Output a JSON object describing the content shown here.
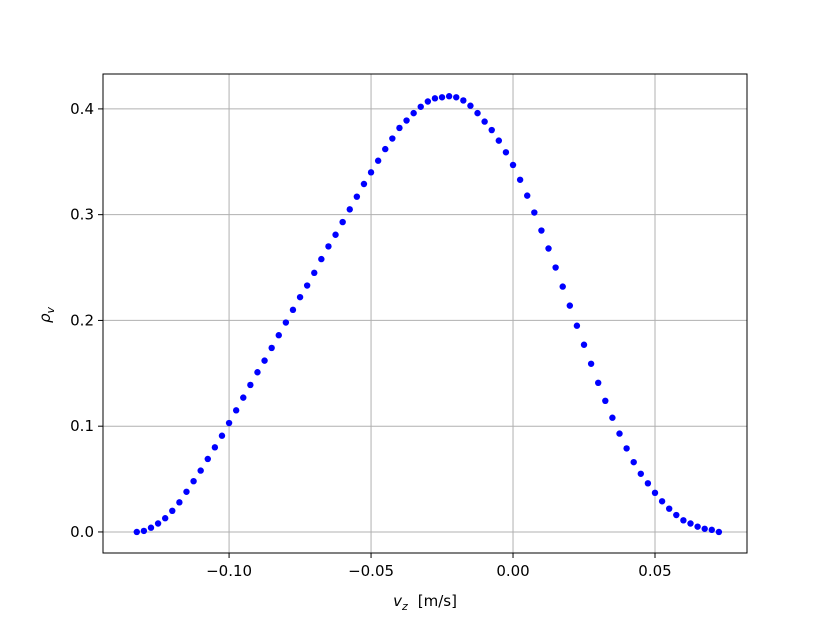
{
  "chart_data": {
    "type": "scatter",
    "xlabel": {
      "symbol": "v",
      "subscript": "z",
      "unit": "[m/s]"
    },
    "ylabel": {
      "symbol": "ρ",
      "subscript": "v"
    },
    "color": "#0000ff",
    "grid": true,
    "xlim": [
      -0.1444,
      0.0824
    ],
    "ylim": [
      -0.0199,
      0.433
    ],
    "xticks": [
      {
        "value": -0.1,
        "label": "−0.10"
      },
      {
        "value": -0.05,
        "label": "−0.05"
      },
      {
        "value": 0,
        "label": "0.00"
      },
      {
        "value": 0.05,
        "label": "0.05"
      }
    ],
    "yticks": [
      {
        "value": 0,
        "label": "0.0"
      },
      0.1,
      0.2,
      0.3,
      0.4
    ],
    "x": [
      -0.1325,
      -0.13,
      -0.1275,
      -0.125,
      -0.1225,
      -0.12,
      -0.1175,
      -0.115,
      -0.1125,
      -0.11,
      -0.1075,
      -0.105,
      -0.1025,
      -0.1,
      -0.0975,
      -0.095,
      -0.0925,
      -0.09,
      -0.0875,
      -0.085,
      -0.0825,
      -0.08,
      -0.0775,
      -0.075,
      -0.0725,
      -0.07,
      -0.0675,
      -0.065,
      -0.0625,
      -0.06,
      -0.0575,
      -0.055,
      -0.0525,
      -0.05,
      -0.0475,
      -0.045,
      -0.0425,
      -0.04,
      -0.0375,
      -0.035,
      -0.0325,
      -0.03,
      -0.0275,
      -0.025,
      -0.0225,
      -0.02,
      -0.0175,
      -0.015,
      -0.0125,
      -0.01,
      -0.0075,
      -0.005,
      -0.0025,
      0,
      0.0025,
      0.005,
      0.0075,
      0.01,
      0.0125,
      0.015,
      0.0175,
      0.02,
      0.0225,
      0.025,
      0.0275,
      0.03,
      0.0325,
      0.035,
      0.0375,
      0.04,
      0.0425,
      0.045,
      0.0475,
      0.05,
      0.0525,
      0.055,
      0.0575,
      0.06,
      0.0625,
      0.065,
      0.0675,
      0.07,
      0.0725
    ],
    "values": [
      0,
      0.001,
      0.004,
      0.008,
      0.013,
      0.02,
      0.028,
      0.038,
      0.048,
      0.058,
      0.069,
      0.08,
      0.091,
      0.103,
      0.115,
      0.127,
      0.139,
      0.151,
      0.162,
      0.174,
      0.186,
      0.198,
      0.21,
      0.222,
      0.233,
      0.245,
      0.258,
      0.27,
      0.281,
      0.293,
      0.305,
      0.317,
      0.329,
      0.34,
      0.351,
      0.362,
      0.372,
      0.382,
      0.389,
      0.396,
      0.402,
      0.407,
      0.41,
      0.411,
      0.412,
      0.411,
      0.408,
      0.403,
      0.396,
      0.388,
      0.38,
      0.37,
      0.359,
      0.347,
      0.333,
      0.318,
      0.302,
      0.285,
      0.268,
      0.25,
      0.232,
      0.214,
      0.195,
      0.177,
      0.159,
      0.141,
      0.124,
      0.108,
      0.093,
      0.079,
      0.066,
      0.055,
      0.046,
      0.037,
      0.029,
      0.022,
      0.016,
      0.011,
      0.008,
      0.005,
      0.003,
      0.002,
      0
    ]
  }
}
